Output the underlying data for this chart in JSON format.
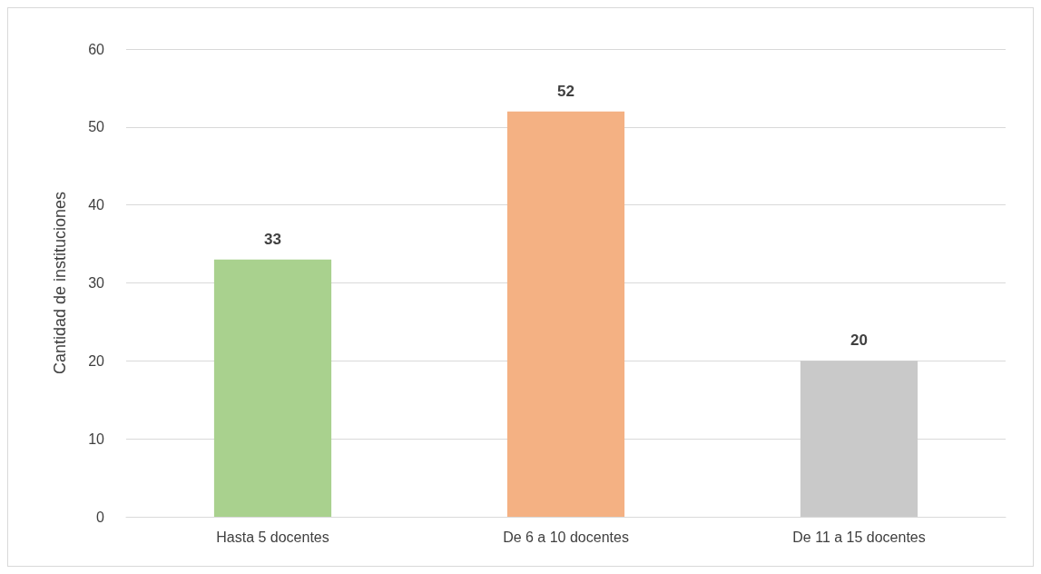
{
  "chart_data": {
    "type": "bar",
    "ylabel": "Cantidad de instituciones",
    "categories": [
      "Hasta 5 docentes",
      "De 6 a 10 docentes",
      "De 11 a 15 docentes"
    ],
    "values": [
      33,
      52,
      20
    ],
    "colors": [
      "#a9d18e",
      "#f4b183",
      "#c9c9c9"
    ],
    "ylim": [
      0,
      60
    ],
    "yticks": [
      0,
      10,
      20,
      30,
      40,
      50,
      60
    ],
    "grid": "y",
    "data_labels": true
  }
}
